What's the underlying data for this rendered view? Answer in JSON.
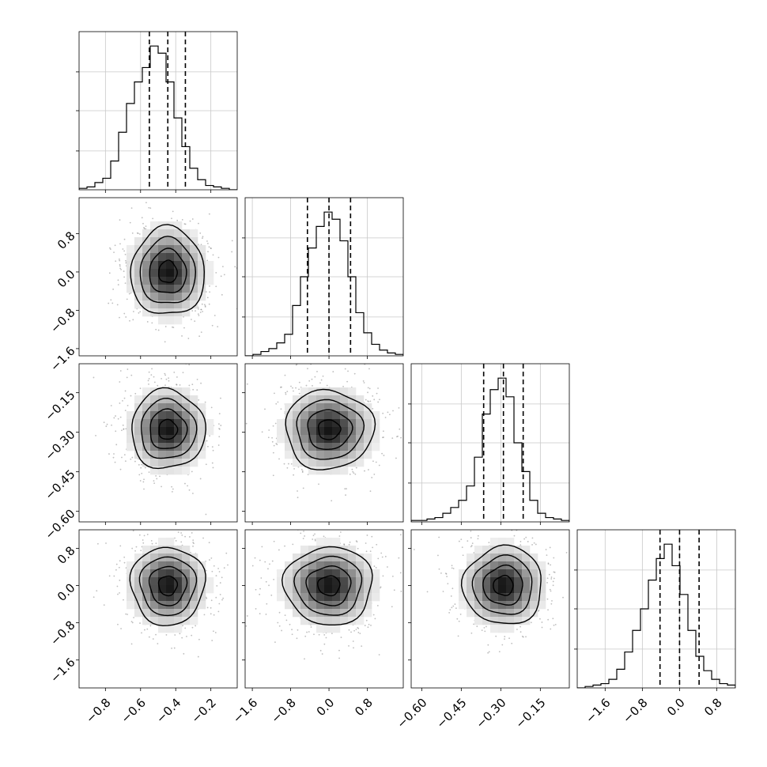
{
  "chart_data": {
    "type": "corner",
    "colors": {
      "line": "#000000",
      "grid": "#c8c8c8",
      "scatter": "#6e6e6e"
    },
    "params": [
      {
        "id": "p0",
        "ticks": [
          -0.8,
          -0.6,
          -0.4,
          -0.2
        ],
        "tick_labels": [
          "−0.8",
          "−0.6",
          "−0.4",
          "−0.2"
        ],
        "range": [
          -0.95,
          -0.05
        ],
        "quantiles": [
          -0.55,
          -0.445,
          -0.345
        ],
        "mean": -0.445,
        "sigma": 0.105
      },
      {
        "id": "p1",
        "ticks": [
          -1.6,
          -0.8,
          0.0,
          0.8
        ],
        "tick_labels": [
          "−1.6",
          "−0.8",
          "0.0",
          "0.8"
        ],
        "range": [
          -1.75,
          1.55
        ],
        "quantiles": [
          -0.45,
          0.0,
          0.45
        ],
        "mean": 0.0,
        "sigma": 0.46
      },
      {
        "id": "p2",
        "ticks": [
          -0.6,
          -0.45,
          -0.3,
          -0.15
        ],
        "tick_labels": [
          "−0.60",
          "−0.45",
          "−0.30",
          "−0.15"
        ],
        "range": [
          -0.64,
          -0.04
        ],
        "quantiles": [
          -0.365,
          -0.29,
          -0.215
        ],
        "mean": -0.29,
        "sigma": 0.075
      },
      {
        "id": "p3",
        "ticks": [
          -1.6,
          -0.8,
          0.0,
          0.8
        ],
        "tick_labels": [
          "−1.6",
          "−0.8",
          "0.0",
          "0.8"
        ],
        "range": [
          -2.2,
          1.2
        ],
        "quantiles": [
          -0.42,
          0.0,
          0.42
        ],
        "mean": 0.0,
        "sigma": 0.42
      }
    ],
    "histograms": [
      {
        "param": 0,
        "counts": [
          1,
          2,
          5,
          8,
          20,
          40,
          60,
          75,
          85,
          100,
          95,
          75,
          50,
          30,
          15,
          7,
          3,
          2,
          1,
          0
        ]
      },
      {
        "param": 1,
        "counts": [
          0,
          1,
          3,
          5,
          9,
          15,
          35,
          55,
          75,
          90,
          100,
          95,
          80,
          55,
          30,
          16,
          8,
          4,
          2,
          1
        ]
      },
      {
        "param": 2,
        "counts": [
          1,
          1,
          2,
          3,
          6,
          10,
          15,
          25,
          45,
          75,
          92,
          100,
          87,
          55,
          35,
          15,
          6,
          3,
          2,
          1
        ]
      },
      {
        "param": 3,
        "counts": [
          0,
          1,
          2,
          3,
          6,
          13,
          25,
          40,
          55,
          75,
          90,
          100,
          85,
          65,
          40,
          22,
          12,
          6,
          3,
          2
        ]
      }
    ],
    "hist_ylim": [
      0,
      110
    ],
    "grid": true,
    "contour_levels": [
      0.5,
      1.0,
      1.5,
      2.0
    ],
    "panels_2d": [
      {
        "x": 0,
        "y": 1
      },
      {
        "x": 0,
        "y": 2
      },
      {
        "x": 1,
        "y": 2
      },
      {
        "x": 0,
        "y": 3
      },
      {
        "x": 1,
        "y": 3
      },
      {
        "x": 2,
        "y": 3
      }
    ]
  }
}
